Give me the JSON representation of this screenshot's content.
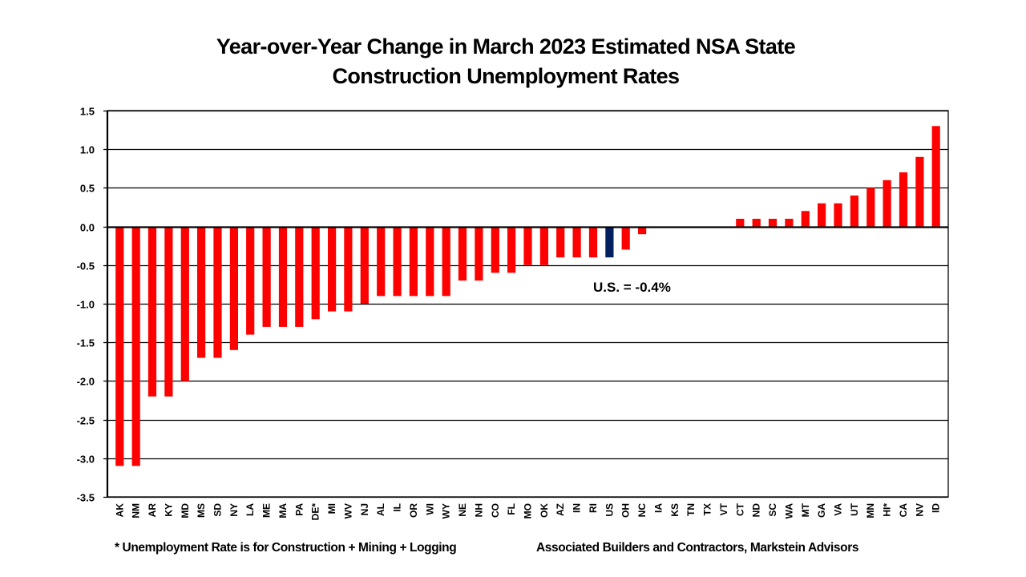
{
  "chart_data": {
    "type": "bar",
    "title": [
      "Year-over-Year Change in March 2023 Estimated NSA State",
      "Construction Unemployment Rates"
    ],
    "xlabel": "",
    "ylabel": "",
    "ylim": [
      -3.5,
      1.5
    ],
    "yticks": [
      1.5,
      1.0,
      0.5,
      0.0,
      -0.5,
      -1.0,
      -1.5,
      -2.0,
      -2.5,
      -3.0,
      -3.5
    ],
    "ytick_labels": [
      "1.5",
      "1.0",
      "0.5",
      "0.0",
      "-0.5",
      "-1.0",
      "-1.5",
      "-2.0",
      "-2.5",
      "-3.0",
      "-3.5"
    ],
    "grid": true,
    "categories": [
      "AK",
      "NM",
      "AR",
      "KY",
      "MD",
      "MS",
      "SD",
      "NY",
      "LA",
      "ME",
      "MA",
      "PA",
      "DE*",
      "MI",
      "WV",
      "NJ",
      "AL",
      "IL",
      "OR",
      "WI",
      "WY",
      "NE",
      "NH",
      "CO",
      "FL",
      "MO",
      "OK",
      "AZ",
      "IN",
      "RI",
      "US",
      "OH",
      "NC",
      "IA",
      "KS",
      "TN",
      "TX",
      "VT",
      "CT",
      "ND",
      "SC",
      "WA",
      "MT",
      "GA",
      "VA",
      "UT",
      "MN",
      "HI*",
      "CA",
      "NV",
      "ID"
    ],
    "values": [
      -3.1,
      -3.1,
      -2.2,
      -2.2,
      -2.0,
      -1.7,
      -1.7,
      -1.6,
      -1.4,
      -1.3,
      -1.3,
      -1.3,
      -1.2,
      -1.1,
      -1.1,
      -1.0,
      -0.9,
      -0.9,
      -0.9,
      -0.9,
      -0.9,
      -0.7,
      -0.7,
      -0.6,
      -0.6,
      -0.5,
      -0.5,
      -0.4,
      -0.4,
      -0.4,
      -0.4,
      -0.3,
      -0.1,
      0.0,
      0.0,
      0.0,
      0.0,
      0.0,
      0.1,
      0.1,
      0.1,
      0.1,
      0.2,
      0.3,
      0.3,
      0.4,
      0.5,
      0.6,
      0.7,
      0.9,
      1.3
    ],
    "highlight_category": "US",
    "colors": {
      "bar": "#ff0000",
      "highlight": "#002060",
      "grid": "#000000"
    },
    "annotations": [
      {
        "text": "U.S. = -0.4%"
      }
    ],
    "legend": null
  },
  "footer": {
    "note": "* Unemployment Rate is for Construction + Mining + Logging",
    "source": "Associated Builders and Contractors, Markstein Advisors"
  }
}
